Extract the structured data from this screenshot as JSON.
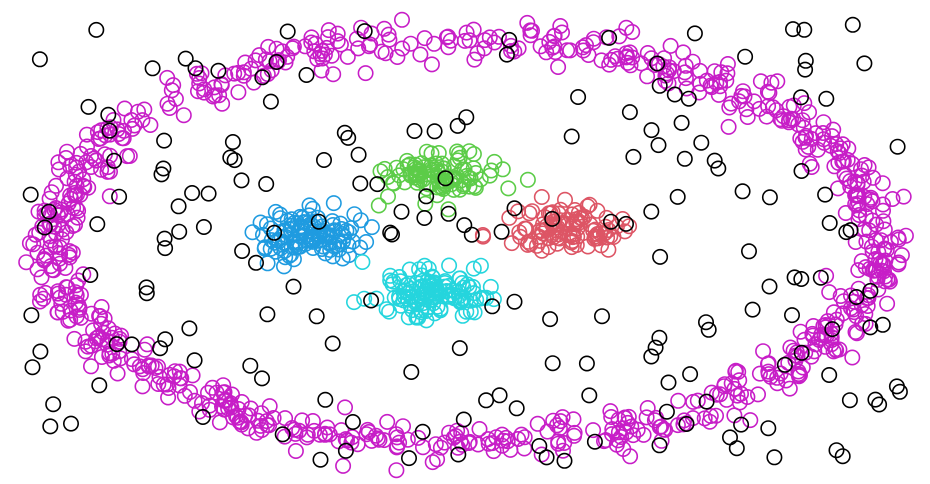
{
  "chart_data": {
    "type": "scatter",
    "title": "",
    "xlabel": "",
    "ylabel": "",
    "xlim": [
      -1.6,
      1.6
    ],
    "ylim": [
      -1.0,
      1.0
    ],
    "axes_visible": false,
    "grid": false,
    "legend": "none",
    "marker": "open-circle",
    "seed": 7,
    "generated_points": [
      {
        "key": "ring",
        "color": "#c71ec7",
        "shape": "ellipse-ring",
        "center": [
          0.0,
          0.0
        ],
        "radii": [
          1.47,
          0.89
        ],
        "jitter": 0.045,
        "count": 820
      },
      {
        "key": "blue",
        "color": "#1f9be0",
        "shape": "blob",
        "center": [
          -0.56,
          0.03
        ],
        "spread": [
          0.17,
          0.09
        ],
        "count": 120
      },
      {
        "key": "green",
        "color": "#5ccc48",
        "shape": "blob",
        "center": [
          -0.09,
          0.29
        ],
        "spread": [
          0.2,
          0.09
        ],
        "count": 100
      },
      {
        "key": "red",
        "color": "#dd5565",
        "shape": "blob",
        "center": [
          0.39,
          0.06
        ],
        "spread": [
          0.2,
          0.09
        ],
        "count": 100
      },
      {
        "key": "cyan",
        "color": "#25d5dd",
        "shape": "blob",
        "center": [
          -0.13,
          -0.22
        ],
        "spread": [
          0.2,
          0.09
        ],
        "count": 130
      },
      {
        "key": "noise",
        "color": "#000000",
        "shape": "uniform-noise",
        "xrange": [
          -1.55,
          1.55
        ],
        "yrange": [
          -0.97,
          0.97
        ],
        "count": 190
      }
    ]
  }
}
